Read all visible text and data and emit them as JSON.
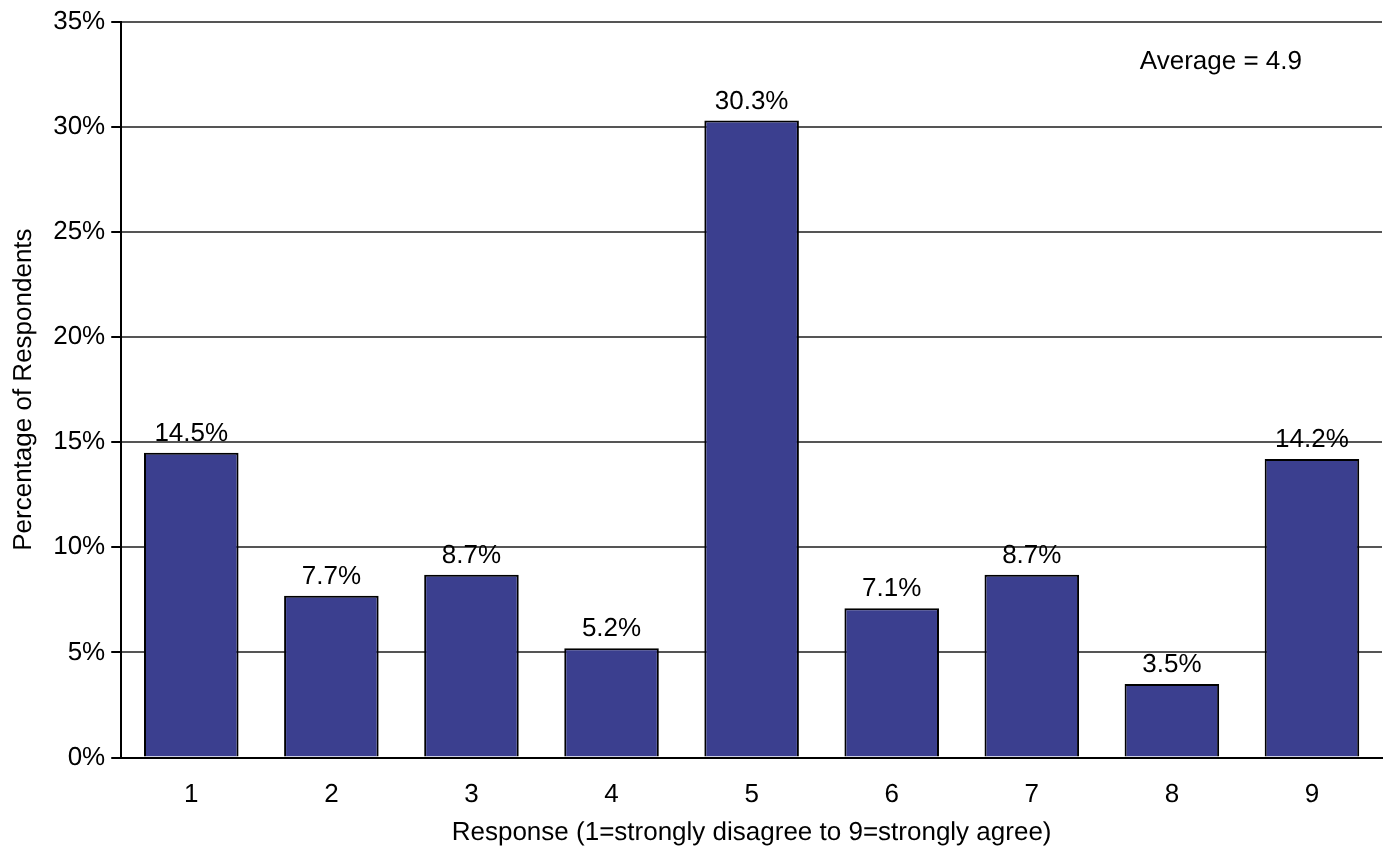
{
  "chart_data": {
    "type": "bar",
    "xlabel": "Response (1=strongly disagree to 9=strongly agree)",
    "ylabel": "Percentage of Respondents",
    "categories": [
      "1",
      "2",
      "3",
      "4",
      "5",
      "6",
      "7",
      "8",
      "9"
    ],
    "values": [
      14.5,
      7.7,
      8.7,
      5.2,
      30.3,
      7.1,
      8.7,
      3.5,
      14.2
    ],
    "value_labels": [
      "14.5%",
      "7.7%",
      "8.7%",
      "5.2%",
      "30.3%",
      "7.1%",
      "8.7%",
      "3.5%",
      "14.2%"
    ],
    "color": "#3b3f8f",
    "ylim": [
      0,
      35
    ],
    "yticks": [
      {
        "value": 0,
        "label": "0%"
      },
      {
        "value": 5,
        "label": "5%"
      },
      {
        "value": 10,
        "label": "10%"
      },
      {
        "value": 15,
        "label": "15%"
      },
      {
        "value": 20,
        "label": "20%"
      },
      {
        "value": 25,
        "label": "25%"
      },
      {
        "value": 30,
        "label": "30%"
      },
      {
        "value": 35,
        "label": "35%"
      }
    ],
    "grid": "y",
    "legend": false,
    "annotations": [
      "Average = 4.9"
    ]
  }
}
